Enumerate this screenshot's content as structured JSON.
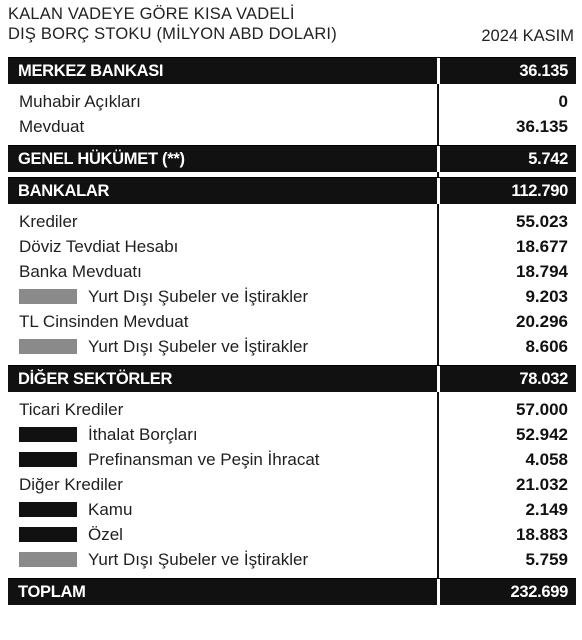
{
  "header": {
    "title_line1": "KALAN VADEYE GÖRE KISA VADELİ",
    "title_line2": "DIŞ BORÇ STOKU (MİLYON ABD DOLARI)",
    "period": "2024 KASIM"
  },
  "colors": {
    "section_bg": "#111111",
    "bar_gray": "#8a8a8a",
    "bar_black": "#111111"
  },
  "merkez": {
    "label": "MERKEZ BANKASI",
    "value": "36.135",
    "items": [
      {
        "label": "Muhabir Açıkları",
        "value": "0"
      },
      {
        "label": "Mevduat",
        "value": "36.135"
      }
    ]
  },
  "genel": {
    "label": "GENEL HÜKÜMET (**)",
    "value": "5.742"
  },
  "bankalar": {
    "label": "BANKALAR",
    "value": "112.790",
    "items": [
      {
        "label": "Krediler",
        "value": "55.023"
      },
      {
        "label": "Döviz Tevdiat Hesabı",
        "value": "18.677"
      },
      {
        "label": "Banka Mevduatı",
        "value": "18.794"
      },
      {
        "label": "Yurt Dışı Şubeler ve İştirakler",
        "value": "9.203"
      },
      {
        "label": "TL Cinsinden Mevduat",
        "value": "20.296"
      },
      {
        "label": "Yurt Dışı Şubeler ve İştirakler",
        "value": "8.606"
      }
    ]
  },
  "diger": {
    "label": "DİĞER SEKTÖRLER",
    "value": "78.032",
    "items": [
      {
        "label": "Ticari Krediler",
        "value": "57.000"
      },
      {
        "label": "İthalat Borçları",
        "value": "52.942"
      },
      {
        "label": "Prefinansman ve Peşin İhracat",
        "value": "4.058"
      },
      {
        "label": "Diğer Krediler",
        "value": "21.032"
      },
      {
        "label": "Kamu",
        "value": "2.149"
      },
      {
        "label": "Özel",
        "value": "18.883"
      },
      {
        "label": "Yurt Dışı Şubeler ve İştirakler",
        "value": "5.759"
      }
    ]
  },
  "toplam": {
    "label": "TOPLAM",
    "value": "232.699"
  }
}
